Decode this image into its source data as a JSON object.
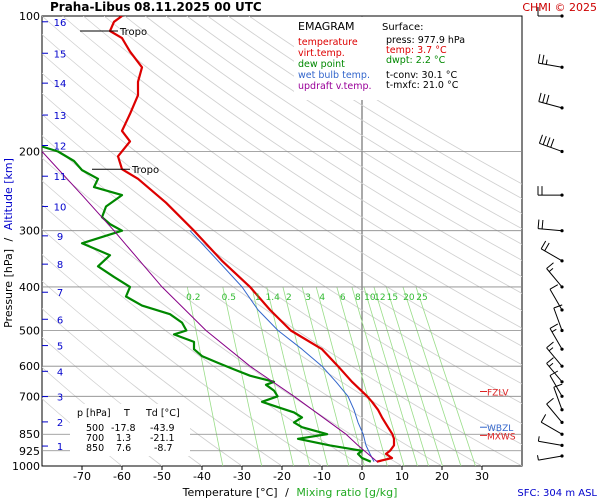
{
  "header": {
    "station": "Praha-Libus",
    "datetime": "08.11.2025 00 UTC",
    "credit": "CHMI © 2025"
  },
  "legend": {
    "title": "EMAGRAM",
    "items": [
      {
        "label": "temperature",
        "color": "#dd0000"
      },
      {
        "label": "virt.temp.",
        "color": "#dd0000"
      },
      {
        "label": "dew point",
        "color": "#008800"
      },
      {
        "label": "wet bulb temp.",
        "color": "#3366cc"
      },
      {
        "label": "updraft v.temp.",
        "color": "#880088"
      }
    ]
  },
  "surface": {
    "title": "Surface:",
    "lines": [
      {
        "text": "press: 977.9 hPa",
        "color": "#000000"
      },
      {
        "text": "temp: 3.7 °C",
        "color": "#dd0000"
      },
      {
        "text": "dwpt: 2.2 °C",
        "color": "#008800"
      },
      {
        "text": "t-conv: 30.1 °C",
        "color": "#000000"
      },
      {
        "text": "t-mxfc: 21.0 °C",
        "color": "#000000"
      }
    ]
  },
  "levels_table": {
    "headers": [
      "p [hPa]",
      "T",
      "Td [°C]"
    ],
    "rows": [
      [
        "500",
        "-17.8",
        "-43.9"
      ],
      [
        "700",
        "1.3",
        "-21.1"
      ],
      [
        "850",
        "7.6",
        "-8.7"
      ]
    ]
  },
  "footer": {
    "sfc": "SFC: 304 m ASL"
  },
  "chart_data": {
    "type": "line",
    "title": "EMAGRAM",
    "xlabel": "Temperature [°C]",
    "xlabel_sep": "/",
    "xlabel_mixing": "Mixing ratio [g/kg]",
    "ylabel": "Pressure [hPa]",
    "ylabel_sep": "/",
    "ylabel_alt": "Altitude [km]",
    "xlim": [
      -80,
      40
    ],
    "ylim": [
      1000,
      100
    ],
    "y_scale": "log",
    "x_ticks": [
      -70,
      -60,
      -50,
      -40,
      -30,
      -20,
      -10,
      0,
      10,
      20,
      30
    ],
    "p_ticks": [
      100,
      200,
      300,
      400,
      500,
      600,
      700,
      850,
      925,
      1000
    ],
    "altitude_km": [
      {
        "km": 1,
        "p": 903
      },
      {
        "km": 2,
        "p": 798
      },
      {
        "km": 3,
        "p": 701
      },
      {
        "km": 4,
        "p": 616
      },
      {
        "km": 5,
        "p": 540
      },
      {
        "km": 6,
        "p": 472
      },
      {
        "km": 7,
        "p": 411
      },
      {
        "km": 8,
        "p": 356
      },
      {
        "km": 9,
        "p": 308
      },
      {
        "km": 10,
        "p": 265
      },
      {
        "km": 11,
        "p": 227
      },
      {
        "km": 12,
        "p": 194
      },
      {
        "km": 13,
        "p": 166
      },
      {
        "km": 14,
        "p": 141
      },
      {
        "km": 15,
        "p": 121
      },
      {
        "km": 16,
        "p": 103
      }
    ],
    "mixing_ratio_labels": [
      "0.2",
      "0.5",
      "1",
      "1.4",
      "2",
      "3",
      "4",
      "6",
      "8",
      "10",
      "12",
      "15",
      "20",
      "25"
    ],
    "tropopause": [
      {
        "label": "Tropo",
        "p": 108,
        "t": -63
      },
      {
        "label": "Tropo",
        "p": 219,
        "t": -60
      }
    ],
    "level_markers": [
      {
        "label": "FZLV",
        "p": 683
      },
      {
        "label": "WBZL",
        "p": 820
      },
      {
        "label": "MXWS",
        "p": 855
      }
    ],
    "series": [
      {
        "name": "temperature",
        "color": "#dd0000",
        "points": [
          [
            978,
            3.7
          ],
          [
            960,
            7.5
          ],
          [
            940,
            6
          ],
          [
            925,
            7
          ],
          [
            900,
            8
          ],
          [
            870,
            8
          ],
          [
            850,
            7.6
          ],
          [
            820,
            6.5
          ],
          [
            780,
            5
          ],
          [
            750,
            4
          ],
          [
            720,
            2.5
          ],
          [
            700,
            1.3
          ],
          [
            650,
            -2.5
          ],
          [
            600,
            -6
          ],
          [
            550,
            -10
          ],
          [
            500,
            -17.8
          ],
          [
            450,
            -23
          ],
          [
            400,
            -28
          ],
          [
            350,
            -35
          ],
          [
            300,
            -42
          ],
          [
            260,
            -49
          ],
          [
            230,
            -56
          ],
          [
            219,
            -60
          ],
          [
            205,
            -61
          ],
          [
            190,
            -58
          ],
          [
            180,
            -60
          ],
          [
            165,
            -58
          ],
          [
            150,
            -56
          ],
          [
            140,
            -56
          ],
          [
            130,
            -55
          ],
          [
            120,
            -58
          ],
          [
            112,
            -60
          ],
          [
            108,
            -63
          ],
          [
            103,
            -62
          ],
          [
            100,
            -60
          ]
        ]
      },
      {
        "name": "wet bulb temp.",
        "color": "#3366cc",
        "points": [
          [
            978,
            3
          ],
          [
            940,
            2
          ],
          [
            900,
            1
          ],
          [
            850,
            0.3
          ],
          [
            800,
            -1
          ],
          [
            750,
            -2
          ],
          [
            700,
            -3.5
          ],
          [
            650,
            -6.5
          ],
          [
            600,
            -10
          ],
          [
            550,
            -15
          ],
          [
            500,
            -21
          ],
          [
            450,
            -26
          ],
          [
            400,
            -30
          ],
          [
            350,
            -36
          ],
          [
            300,
            -43
          ]
        ]
      },
      {
        "name": "dew point",
        "color": "#008800",
        "points": [
          [
            978,
            2.2
          ],
          [
            960,
            0
          ],
          [
            940,
            -1
          ],
          [
            925,
            0
          ],
          [
            900,
            -8
          ],
          [
            870,
            -16
          ],
          [
            850,
            -8.7
          ],
          [
            820,
            -15
          ],
          [
            800,
            -17
          ],
          [
            780,
            -15
          ],
          [
            760,
            -17
          ],
          [
            740,
            -21
          ],
          [
            720,
            -25
          ],
          [
            700,
            -21.1
          ],
          [
            680,
            -22
          ],
          [
            660,
            -24
          ],
          [
            650,
            -22
          ],
          [
            630,
            -28
          ],
          [
            610,
            -32
          ],
          [
            590,
            -36
          ],
          [
            570,
            -40
          ],
          [
            550,
            -42
          ],
          [
            530,
            -42
          ],
          [
            510,
            -47
          ],
          [
            500,
            -43.9
          ],
          [
            480,
            -45
          ],
          [
            460,
            -48
          ],
          [
            440,
            -55
          ],
          [
            420,
            -59
          ],
          [
            400,
            -58
          ],
          [
            380,
            -62
          ],
          [
            360,
            -66
          ],
          [
            340,
            -63
          ],
          [
            320,
            -70
          ],
          [
            300,
            -60
          ],
          [
            290,
            -63
          ],
          [
            280,
            -65
          ],
          [
            265,
            -64
          ],
          [
            250,
            -60
          ],
          [
            240,
            -67
          ],
          [
            230,
            -66
          ],
          [
            220,
            -70
          ],
          [
            210,
            -72
          ],
          [
            200,
            -76
          ],
          [
            195,
            -80
          ]
        ]
      },
      {
        "name": "updraft v.temp.",
        "color": "#880088",
        "points": [
          [
            978,
            3.8
          ],
          [
            900,
            -1
          ],
          [
            850,
            -4
          ],
          [
            700,
            -17
          ],
          [
            600,
            -28
          ],
          [
            500,
            -39
          ],
          [
            400,
            -50
          ],
          [
            300,
            -62
          ],
          [
            250,
            -70
          ],
          [
            200,
            -80
          ]
        ]
      }
    ],
    "wind_barbs": [
      {
        "p": 100,
        "dir": 270,
        "kt": 10
      },
      {
        "p": 130,
        "dir": 280,
        "kt": 25
      },
      {
        "p": 160,
        "dir": 285,
        "kt": 30
      },
      {
        "p": 200,
        "dir": 290,
        "kt": 40
      },
      {
        "p": 250,
        "dir": 270,
        "kt": 20
      },
      {
        "p": 300,
        "dir": 275,
        "kt": 20
      },
      {
        "p": 350,
        "dir": 300,
        "kt": 20
      },
      {
        "p": 400,
        "dir": 320,
        "kt": 15
      },
      {
        "p": 450,
        "dir": 330,
        "kt": 10
      },
      {
        "p": 500,
        "dir": 340,
        "kt": 10
      },
      {
        "p": 550,
        "dir": 330,
        "kt": 15
      },
      {
        "p": 600,
        "dir": 320,
        "kt": 15
      },
      {
        "p": 650,
        "dir": 320,
        "kt": 15
      },
      {
        "p": 700,
        "dir": 330,
        "kt": 10
      },
      {
        "p": 750,
        "dir": 340,
        "kt": 10
      },
      {
        "p": 800,
        "dir": 320,
        "kt": 10
      },
      {
        "p": 850,
        "dir": 300,
        "kt": 10
      },
      {
        "p": 900,
        "dir": 280,
        "kt": 5
      },
      {
        "p": 950,
        "dir": 260,
        "kt": 5
      }
    ]
  }
}
